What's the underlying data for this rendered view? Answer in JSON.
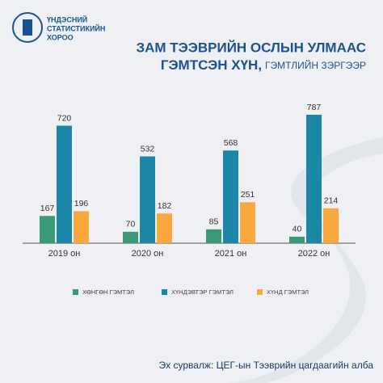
{
  "chart_data": {
    "type": "bar",
    "logo_text": [
      "ҮНДЭСНИЙ",
      "СТАТИСТИКИЙН",
      "ХОРОО"
    ],
    "title": [
      "ЗАМ ТЭЭВРИЙН ОСЛЫН УЛМААС",
      "ГЭМТСЭН ХҮН,"
    ],
    "subtitle": "ГЭМТЛИЙН ЗЭРГЭЭР",
    "categories": [
      "2019 он",
      "2020 он",
      "2021 он",
      "2022 он"
    ],
    "series": [
      {
        "name": "ХӨНГӨН ГЭМТЭЛ",
        "color": "#3a9a78",
        "values": [
          167,
          70,
          85,
          40
        ]
      },
      {
        "name": "ХҮНДЭВТЭР ГЭМТЭЛ",
        "color": "#1c86a6",
        "values": [
          720,
          532,
          568,
          787
        ]
      },
      {
        "name": "ХҮНД ГЭМТЭЛ",
        "color": "#f8a83c",
        "values": [
          196,
          182,
          251,
          214
        ]
      }
    ],
    "source": "Эх сурвалж: ЦЕГ-ын Тээврийн цагдаагийн алба"
  }
}
